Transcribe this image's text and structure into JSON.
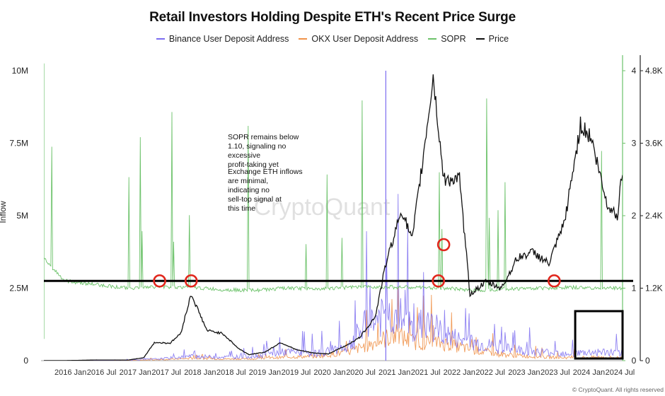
{
  "chart_data": {
    "type": "line",
    "title": "Retail Investors Holding Despite ETH's Recent Price Surge",
    "ylabel": "Inflow",
    "legend_position": "top-center",
    "grid": false,
    "watermark": "CryptoQuant",
    "credit": "© CryptoQuant. All rights reserved",
    "x_labels": [
      "2016 Jan",
      "2016 Jul",
      "2017 Jan",
      "2017 Jul",
      "2018 Jan",
      "2018 Jul",
      "2019 Jan",
      "2019 Jul",
      "2020 Jan",
      "2020 Jul",
      "2021 Jan",
      "2021 Jul",
      "2022 Jan",
      "2022 Jul",
      "2023 Jan",
      "2023 Jul",
      "2024 Jan",
      "2024 Jul"
    ],
    "x_range": [
      "2015-09",
      "2024-11"
    ],
    "y_left": {
      "ticks": [
        "0",
        "2.5M",
        "5M",
        "7.5M",
        "10M"
      ],
      "values": [
        0,
        2500000,
        5000000,
        7500000,
        10000000
      ],
      "range": [
        0,
        10000000
      ]
    },
    "y_sopr": {
      "ticks": [
        "0",
        "1",
        "2",
        "3",
        "4"
      ],
      "values": [
        0,
        1,
        2,
        3,
        4
      ],
      "range": [
        0,
        4
      ]
    },
    "y_price": {
      "ticks": [
        "0",
        "1.2K",
        "2.4K",
        "3.6K",
        "4.8K"
      ],
      "values": [
        0,
        1200,
        2400,
        3600,
        4800
      ],
      "range": [
        0,
        4800
      ]
    },
    "series": [
      {
        "name": "Binance User Deposit Address",
        "color": "#7b6cf0",
        "axis": "left",
        "x": [
          "2016-01",
          "2016-07",
          "2017-01",
          "2017-07",
          "2018-01",
          "2018-07",
          "2019-01",
          "2019-07",
          "2020-01",
          "2020-07",
          "2020-10",
          "2021-01",
          "2021-04",
          "2021-07",
          "2021-10",
          "2022-01",
          "2022-04",
          "2022-07",
          "2023-01",
          "2023-07",
          "2024-01",
          "2024-07",
          "2024-11"
        ],
        "y": [
          0,
          0,
          20000,
          60000,
          150000,
          120000,
          150000,
          300000,
          250000,
          500000,
          1200000,
          1500000,
          1600000,
          1100000,
          1300000,
          900000,
          700000,
          600000,
          400000,
          300000,
          250000,
          300000,
          250000
        ]
      },
      {
        "name": "OKX User Deposit Address",
        "color": "#f0924a",
        "axis": "left",
        "x": [
          "2016-01",
          "2017-01",
          "2017-07",
          "2018-01",
          "2018-07",
          "2019-01",
          "2019-07",
          "2020-01",
          "2020-07",
          "2021-01",
          "2021-04",
          "2021-07",
          "2022-01",
          "2022-07",
          "2023-01",
          "2023-07",
          "2024-01",
          "2024-07",
          "2024-11"
        ],
        "y": [
          0,
          10000,
          30000,
          80000,
          60000,
          60000,
          120000,
          150000,
          300000,
          700000,
          900000,
          650000,
          600000,
          350000,
          200000,
          130000,
          100000,
          120000,
          100000
        ]
      },
      {
        "name": "SOPR",
        "color": "#6cc26a",
        "axis": "sopr",
        "x": [
          "2015-09",
          "2016-01",
          "2016-07",
          "2017-01",
          "2017-07",
          "2018-01",
          "2018-07",
          "2019-01",
          "2019-07",
          "2020-01",
          "2020-07",
          "2021-01",
          "2021-07",
          "2022-01",
          "2022-07",
          "2023-01",
          "2023-07",
          "2024-01",
          "2024-07",
          "2024-11"
        ],
        "y": [
          1.4,
          1.1,
          1.05,
          1.0,
          1.02,
          1.01,
          0.98,
          0.97,
          1.0,
          0.99,
          1.01,
          1.02,
          1.01,
          1.0,
          0.97,
          0.99,
          1.0,
          1.01,
          1.0,
          1.0
        ]
      },
      {
        "name": "Price",
        "color": "#111111",
        "axis": "price",
        "x": [
          "2015-09",
          "2016-01",
          "2016-07",
          "2017-01",
          "2017-04",
          "2017-06",
          "2017-09",
          "2017-11",
          "2018-01",
          "2018-04",
          "2018-07",
          "2018-10",
          "2018-12",
          "2019-03",
          "2019-06",
          "2019-09",
          "2019-12",
          "2020-03",
          "2020-06",
          "2020-09",
          "2020-12",
          "2021-02",
          "2021-05",
          "2021-07",
          "2021-09",
          "2021-11",
          "2022-01",
          "2022-04",
          "2022-06",
          "2022-09",
          "2022-12",
          "2023-03",
          "2023-06",
          "2023-09",
          "2023-12",
          "2024-03",
          "2024-05",
          "2024-08",
          "2024-10",
          "2024-11"
        ],
        "y": [
          1,
          1,
          11,
          10,
          50,
          300,
          290,
          450,
          1100,
          500,
          450,
          200,
          100,
          140,
          300,
          180,
          130,
          110,
          230,
          380,
          730,
          1600,
          2500,
          2000,
          3300,
          4700,
          3000,
          3000,
          1100,
          1300,
          1200,
          1700,
          1800,
          1600,
          2300,
          3900,
          3700,
          2600,
          2400,
          3200
        ]
      }
    ],
    "reference_line": {
      "axis": "sopr",
      "value": 1.1
    },
    "annotations": [
      "SOPR remains below 1.10, signaling no excessive profit-taking yet",
      "Exchange ETH inflows are minimal, indicating no sell-top signal at this time"
    ],
    "highlight_circles_on": [
      "2017-07",
      "2018-01",
      "2021-12",
      "2022-01",
      "2023-10"
    ],
    "highlight_box": {
      "x_start": "2024-02",
      "x_end": "2024-11"
    }
  }
}
